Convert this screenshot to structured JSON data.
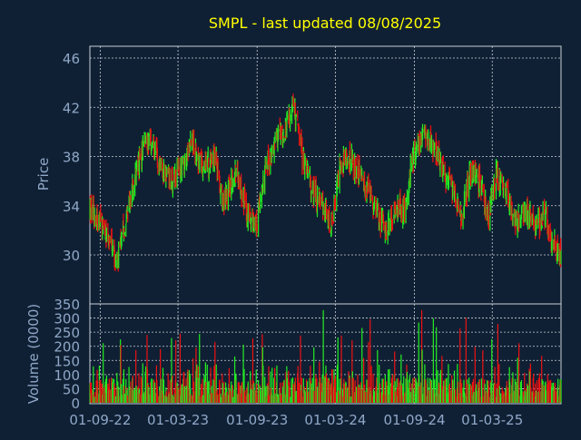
{
  "chart_data": [
    {
      "type": "candlestick",
      "title": "SMPL - last updated 08/08/2025",
      "ylabel": "Price",
      "ylim": [
        28,
        47
      ],
      "yticks": [
        30,
        34,
        38,
        42,
        46
      ],
      "ytick_labels": [
        "30",
        "34",
        "38",
        "42",
        "46"
      ],
      "grid": true,
      "x_range": [
        "2022-08-08",
        "2025-08-08"
      ],
      "up_color": "#22ee22",
      "down_color": "#ee1111",
      "price_path": {
        "dates": [
          "2022-08-08",
          "2022-09-15",
          "2022-10-10",
          "2022-11-01",
          "2022-11-25",
          "2022-12-20",
          "2023-01-15",
          "2023-02-10",
          "2023-03-06",
          "2023-04-02",
          "2023-05-01",
          "2023-05-25",
          "2023-06-15",
          "2023-07-15",
          "2023-08-08",
          "2023-08-28",
          "2023-09-20",
          "2023-10-15",
          "2023-11-05",
          "2023-11-25",
          "2023-12-15",
          "2024-01-10",
          "2024-02-01",
          "2024-02-20",
          "2024-03-10",
          "2024-04-01",
          "2024-04-25",
          "2024-05-20",
          "2024-06-10",
          "2024-06-28",
          "2024-07-20",
          "2024-08-10",
          "2024-08-28",
          "2024-09-25",
          "2024-10-20",
          "2024-11-05",
          "2024-11-28",
          "2024-12-20",
          "2025-01-10",
          "2025-01-30",
          "2025-02-20",
          "2025-03-10",
          "2025-04-05",
          "2025-04-25",
          "2025-05-20",
          "2025-06-10",
          "2025-06-28",
          "2025-07-15",
          "2025-08-08"
        ],
        "close": [
          33.8,
          32.0,
          29.3,
          33.0,
          37.0,
          39.5,
          37.7,
          36.0,
          37.0,
          39.0,
          37.0,
          38.3,
          34.0,
          37.0,
          33.5,
          32.0,
          37.0,
          39.5,
          40.0,
          42.0,
          38.0,
          35.0,
          34.0,
          32.0,
          37.0,
          38.0,
          36.5,
          35.0,
          33.0,
          32.0,
          34.0,
          33.5,
          38.0,
          40.0,
          38.5,
          37.0,
          35.5,
          33.0,
          37.0,
          36.0,
          33.0,
          36.5,
          35.0,
          32.5,
          33.5,
          32.0,
          33.5,
          31.5,
          29.5
        ]
      },
      "volume_panel": {
        "ylabel": "Volume (0000)",
        "ylim": [
          0,
          350
        ],
        "yticks": [
          0,
          50,
          100,
          150,
          200,
          250,
          300,
          350
        ],
        "ytick_labels": [
          "0",
          "50",
          "100",
          "150",
          "200",
          "250",
          "300",
          "350"
        ]
      },
      "x_tick_labels": [
        {
          "date": "2022-09-01",
          "label": "01-09-22"
        },
        {
          "date": "2023-03-01",
          "label": "01-03-23"
        },
        {
          "date": "2023-09-01",
          "label": "01-09-23"
        },
        {
          "date": "2024-03-01",
          "label": "01-03-24"
        },
        {
          "date": "2024-09-01",
          "label": "01-09-24"
        },
        {
          "date": "2025-03-01",
          "label": "01-03-25"
        }
      ]
    }
  ],
  "style": {
    "background": "#102034",
    "title_color": "#ffff00",
    "axis_text_color": "#8fa8c8",
    "frame_color": "#c8d0d8",
    "grid_color": "#c8d0d8"
  }
}
